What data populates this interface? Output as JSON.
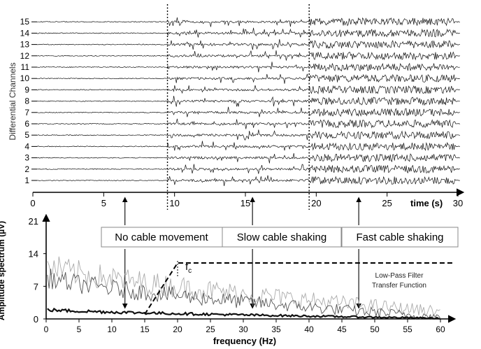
{
  "chart_data": [
    {
      "type": "line",
      "ylabel": "Differential Channels",
      "xlabel": "time (s)",
      "x_ticks": [
        0,
        5,
        10,
        15,
        20,
        25,
        30
      ],
      "channels": [
        "1",
        "2",
        "3",
        "4",
        "5",
        "6",
        "7",
        "8",
        "9",
        "10",
        "11",
        "12",
        "13",
        "14",
        "15"
      ],
      "xlim": [
        0,
        30
      ],
      "segments": [
        {
          "label": "No cable movement",
          "start_s": 0,
          "end_s": 9.5
        },
        {
          "label": "Slow cable shaking",
          "start_s": 9.5,
          "end_s": 19.5
        },
        {
          "label": "Fast cable shaking",
          "start_s": 19.5,
          "end_s": 30
        }
      ],
      "boundaries_s": [
        9.5,
        19.5
      ],
      "arrow_targets_s": [
        6.5,
        15.5,
        23
      ]
    },
    {
      "type": "line",
      "ylabel": "Amplitude spectrum (µV)",
      "xlabel": "frequency (Hz)",
      "x_ticks": [
        0,
        5,
        10,
        15,
        20,
        25,
        30,
        35,
        40,
        45,
        50,
        55,
        60
      ],
      "y_ticks": [
        0,
        7,
        14,
        21
      ],
      "xlim": [
        0,
        60
      ],
      "ylim": [
        0,
        21
      ],
      "series": [
        {
          "condition": "No cable movement",
          "color": "#111111",
          "start": 2.0,
          "end": 0.15,
          "noise": 0.35
        },
        {
          "condition": "Slow cable shaking",
          "color": "#555555",
          "start": 9.0,
          "end": 0.4,
          "noise": 2.2
        },
        {
          "condition": "Fast cable shaking",
          "color": "#aaaaaa",
          "start": 11.5,
          "end": 1.6,
          "noise": 3.0
        }
      ],
      "filter": {
        "label_line1": "Low-Pass Filter",
        "label_line2": "Transfer Function",
        "cutoff_label": "f",
        "cutoff_subscript": "c",
        "cutoff_hz": 20,
        "curve": [
          [
            15,
            1
          ],
          [
            20,
            12
          ],
          [
            29,
            12
          ],
          [
            62,
            12
          ]
        ]
      },
      "arrow_targets_hz": [
        13.5,
        33.5,
        48.5
      ]
    }
  ],
  "labels": {
    "no_movement": "No cable movement",
    "slow_shaking": "Slow cable shaking",
    "fast_shaking": "Fast cable shaking"
  }
}
